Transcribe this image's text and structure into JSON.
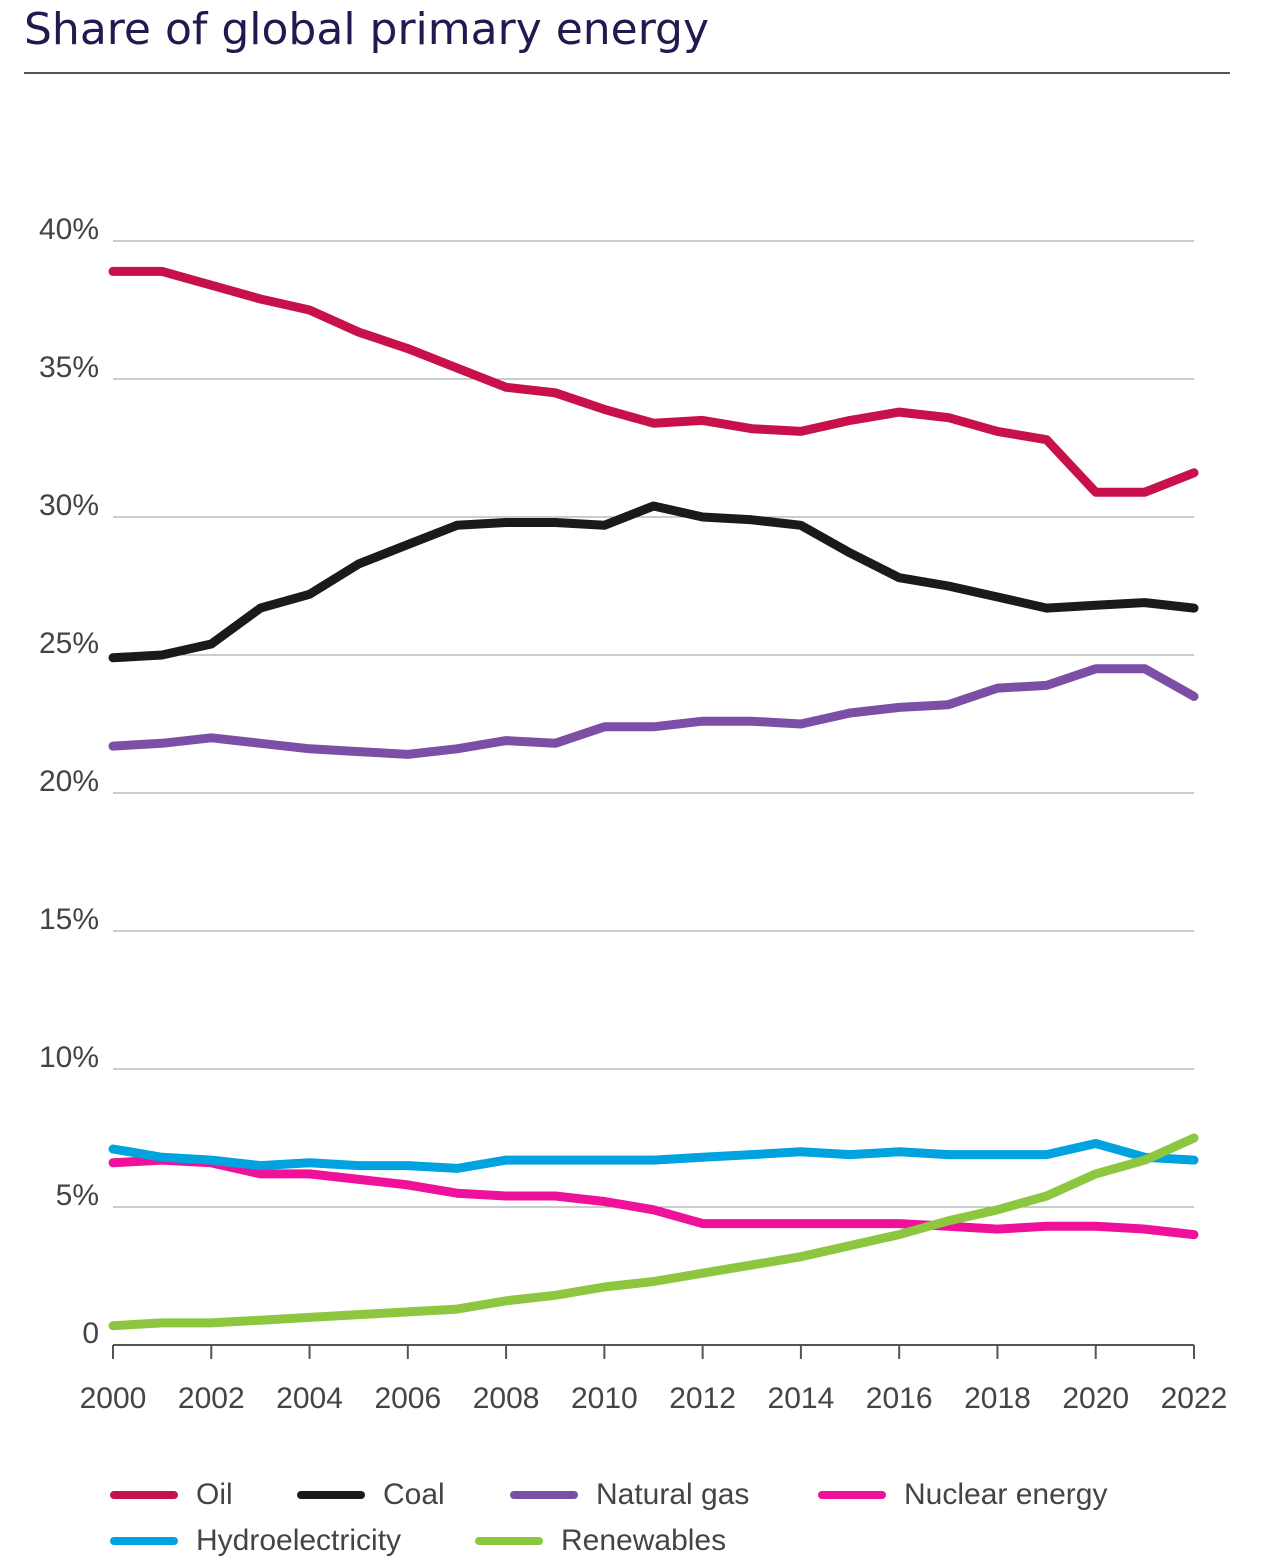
{
  "chart_data": {
    "type": "line",
    "title": "Share of global primary energy",
    "x": [
      2000,
      2001,
      2002,
      2003,
      2004,
      2005,
      2006,
      2007,
      2008,
      2009,
      2010,
      2011,
      2012,
      2013,
      2014,
      2015,
      2016,
      2017,
      2018,
      2019,
      2020,
      2021,
      2022
    ],
    "x_ticks": [
      "2000",
      "2002",
      "2004",
      "2006",
      "2008",
      "2010",
      "2012",
      "2014",
      "2016",
      "2018",
      "2020",
      "2022"
    ],
    "y_ticks": [
      "0",
      "5%",
      "10%",
      "15%",
      "20%",
      "25%",
      "30%",
      "35%",
      "40%"
    ],
    "ylim": [
      0,
      40
    ],
    "xlim": [
      2000,
      2022
    ],
    "grid": true,
    "legend_position": "bottom",
    "series": [
      {
        "name": "Oil",
        "color": "#c8104a",
        "values": [
          38.9,
          38.9,
          38.4,
          37.9,
          37.5,
          36.7,
          36.1,
          35.4,
          34.7,
          34.5,
          33.9,
          33.4,
          33.5,
          33.2,
          33.1,
          33.5,
          33.8,
          33.6,
          33.1,
          32.8,
          30.9,
          30.9,
          31.6
        ]
      },
      {
        "name": "Coal",
        "color": "#1a1a1a",
        "values": [
          24.9,
          25.0,
          25.4,
          26.7,
          27.2,
          28.3,
          29.0,
          29.7,
          29.8,
          29.8,
          29.7,
          30.4,
          30.0,
          29.9,
          29.7,
          28.7,
          27.8,
          27.5,
          27.1,
          26.7,
          26.8,
          26.9,
          26.7
        ]
      },
      {
        "name": "Natural gas",
        "color": "#7b4fa6",
        "values": [
          21.7,
          21.8,
          22.0,
          21.8,
          21.6,
          21.5,
          21.4,
          21.6,
          21.9,
          21.8,
          22.4,
          22.4,
          22.6,
          22.6,
          22.5,
          22.9,
          23.1,
          23.2,
          23.8,
          23.9,
          24.5,
          24.5,
          23.5
        ]
      },
      {
        "name": "Nuclear energy",
        "color": "#f0119a",
        "values": [
          6.6,
          6.7,
          6.6,
          6.2,
          6.2,
          6.0,
          5.8,
          5.5,
          5.4,
          5.4,
          5.2,
          4.9,
          4.4,
          4.4,
          4.4,
          4.4,
          4.4,
          4.3,
          4.2,
          4.3,
          4.3,
          4.2,
          4.0
        ]
      },
      {
        "name": "Hydroelectricity",
        "color": "#00a3e0",
        "values": [
          7.1,
          6.8,
          6.7,
          6.5,
          6.6,
          6.5,
          6.5,
          6.4,
          6.7,
          6.7,
          6.7,
          6.7,
          6.8,
          6.9,
          7.0,
          6.9,
          7.0,
          6.9,
          6.9,
          6.9,
          7.3,
          6.8,
          6.7
        ]
      },
      {
        "name": "Renewables",
        "color": "#8dc63f",
        "values": [
          0.7,
          0.8,
          0.8,
          0.9,
          1.0,
          1.1,
          1.2,
          1.3,
          1.6,
          1.8,
          2.1,
          2.3,
          2.6,
          2.9,
          3.2,
          3.6,
          4.0,
          4.5,
          4.9,
          5.4,
          6.2,
          6.7,
          7.5
        ]
      }
    ]
  }
}
